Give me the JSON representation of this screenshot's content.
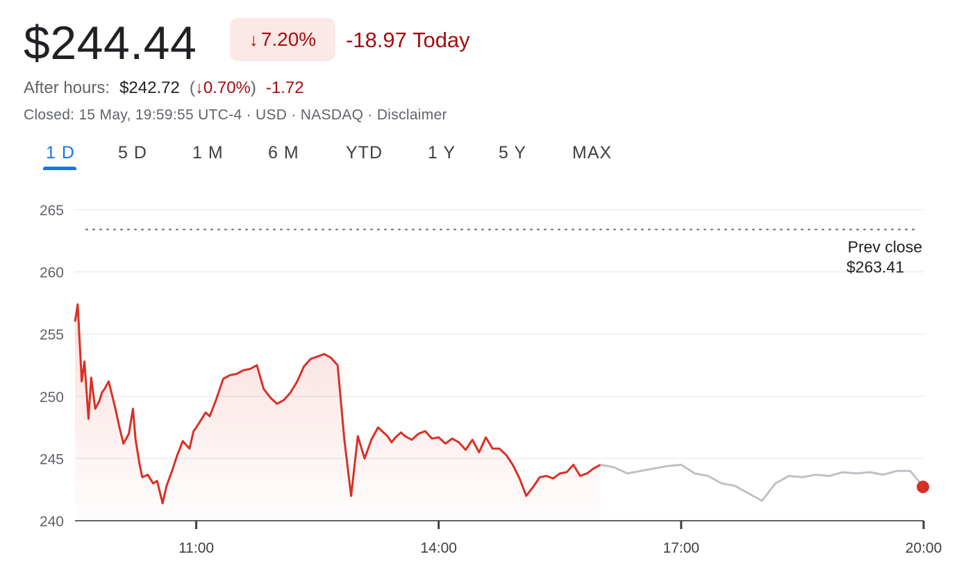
{
  "quote": {
    "price": "$244.44",
    "change_pct": "7.20%",
    "change_today": "-18.97 Today",
    "after_hours_label": "After hours:",
    "after_hours_price": "$242.72",
    "after_hours_pct": "0.70%",
    "after_hours_change": "-1.72",
    "meta": "Closed: 15 May, 19:59:55 UTC-4 · USD · NASDAQ · Disclaimer"
  },
  "tabs": [
    "1 D",
    "5 D",
    "1 M",
    "6 M",
    "YTD",
    "1 Y",
    "5 Y",
    "MAX"
  ],
  "active_tab": "1 D",
  "colors": {
    "down": "#d93025",
    "down_text": "#a50e0e",
    "badge_bg": "#fce8e6",
    "after_hours_line": "#bdc1c6",
    "active_tab": "#1a73e8"
  },
  "icons": {
    "change_arrow": "down-arrow-icon"
  },
  "chart_data": {
    "type": "line",
    "ylim": [
      240,
      265
    ],
    "yticks": [
      265,
      260,
      255,
      250,
      245,
      240
    ],
    "xlim": [
      "09:30",
      "20:00"
    ],
    "xticks": [
      "11:00",
      "14:00",
      "17:00",
      "20:00"
    ],
    "grid": true,
    "prev_close": {
      "label": "Prev close",
      "value_label": "$263.41",
      "value": 263.41
    },
    "series": [
      {
        "session": "regular",
        "x": [
          "09:30",
          "09:32",
          "09:35",
          "09:37",
          "09:40",
          "09:42",
          "09:45",
          "09:48",
          "09:50",
          "09:52",
          "09:55",
          "10:00",
          "10:03",
          "10:06",
          "10:10",
          "10:13",
          "10:15",
          "10:18",
          "10:20",
          "10:24",
          "10:28",
          "10:31",
          "10:35",
          "10:38",
          "10:42",
          "10:46",
          "10:50",
          "10:55",
          "10:58",
          "11:00",
          "11:03",
          "11:07",
          "11:10",
          "11:15",
          "11:20",
          "11:25",
          "11:30",
          "11:35",
          "11:40",
          "11:45",
          "11:50",
          "11:55",
          "12:00",
          "12:05",
          "12:10",
          "12:15",
          "12:20",
          "12:25",
          "12:30",
          "12:35",
          "12:40",
          "12:45",
          "12:50",
          "12:55",
          "13:00",
          "13:05",
          "13:10",
          "13:15",
          "13:20",
          "13:22",
          "13:25",
          "13:28",
          "13:32",
          "13:35",
          "13:40",
          "13:45",
          "13:50",
          "13:55",
          "14:00",
          "14:05",
          "14:10",
          "14:15",
          "14:20",
          "14:25",
          "14:30",
          "14:35",
          "14:40",
          "14:45",
          "14:50",
          "14:55",
          "15:00",
          "15:05",
          "15:10",
          "15:15",
          "15:20",
          "15:25",
          "15:30",
          "15:35",
          "15:40",
          "15:45",
          "15:50",
          "15:55",
          "16:00"
        ],
        "y": [
          256.0,
          257.4,
          251.2,
          252.8,
          248.2,
          251.5,
          249.0,
          249.6,
          250.3,
          250.6,
          251.2,
          249.0,
          247.5,
          246.2,
          247.0,
          249.0,
          246.5,
          244.5,
          243.5,
          243.7,
          243.0,
          243.2,
          241.4,
          242.8,
          244.0,
          245.3,
          246.4,
          245.8,
          247.2,
          247.5,
          248.0,
          248.7,
          248.4,
          249.8,
          251.4,
          251.7,
          251.8,
          252.1,
          252.2,
          252.5,
          250.6,
          249.9,
          249.4,
          249.7,
          250.3,
          251.2,
          252.4,
          253.0,
          253.2,
          253.4,
          253.1,
          252.5,
          246.5,
          242.0,
          246.8,
          245.0,
          246.5,
          247.5,
          247.0,
          246.8,
          246.3,
          246.7,
          247.1,
          246.8,
          246.5,
          247.0,
          247.2,
          246.6,
          246.7,
          246.2,
          246.6,
          246.3,
          245.7,
          246.5,
          245.5,
          246.7,
          245.8,
          245.8,
          245.3,
          244.5,
          243.4,
          242.0,
          242.7,
          243.5,
          243.6,
          243.4,
          243.8,
          243.9,
          244.5,
          243.6,
          243.8,
          244.2,
          244.5
        ]
      },
      {
        "session": "after_hours",
        "x": [
          "16:00",
          "16:10",
          "16:20",
          "16:30",
          "16:40",
          "16:50",
          "17:00",
          "17:10",
          "17:20",
          "17:30",
          "17:40",
          "17:50",
          "18:00",
          "18:10",
          "18:20",
          "18:30",
          "18:40",
          "18:50",
          "19:00",
          "19:10",
          "19:20",
          "19:30",
          "19:40",
          "19:50",
          "20:00"
        ],
        "y": [
          244.5,
          244.3,
          243.8,
          244.0,
          244.2,
          244.4,
          244.5,
          243.8,
          243.6,
          243.0,
          242.8,
          242.2,
          241.6,
          243.0,
          243.6,
          243.5,
          243.7,
          243.6,
          243.9,
          243.8,
          243.9,
          243.7,
          244.0,
          244.0,
          242.72
        ]
      }
    ]
  }
}
